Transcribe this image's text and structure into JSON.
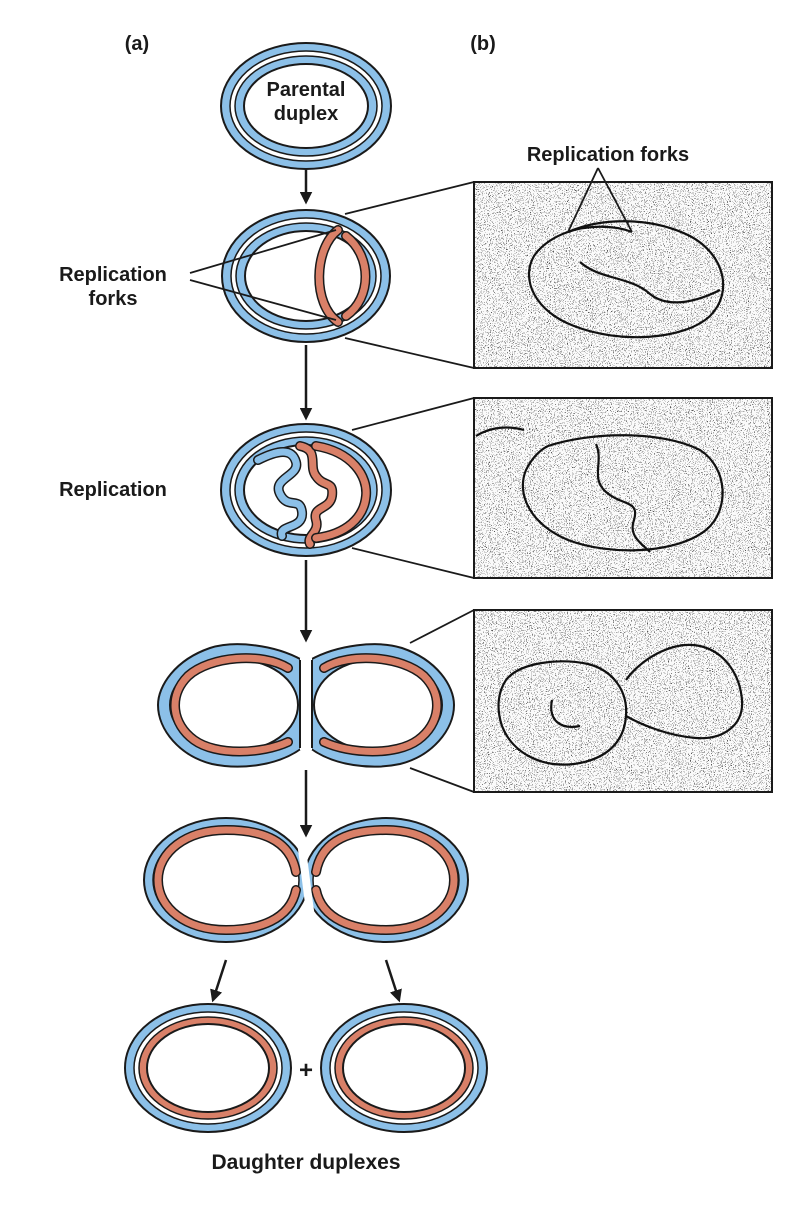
{
  "panels": {
    "a": "(a)",
    "b": "(b)"
  },
  "labels": {
    "parental_line1": "Parental",
    "parental_line2": "duplex",
    "forks_left_line1": "Replication",
    "forks_left_line2": "forks",
    "replication": "Replication",
    "forks_micrograph": "Replication forks",
    "plus": "+",
    "daughters": "Daughter duplexes"
  },
  "colors": {
    "parental_strand": "#8cc0e8",
    "new_strand": "#d98068",
    "outline": "#1a1a1a",
    "micrograph_grain": "#2a2a2a"
  }
}
